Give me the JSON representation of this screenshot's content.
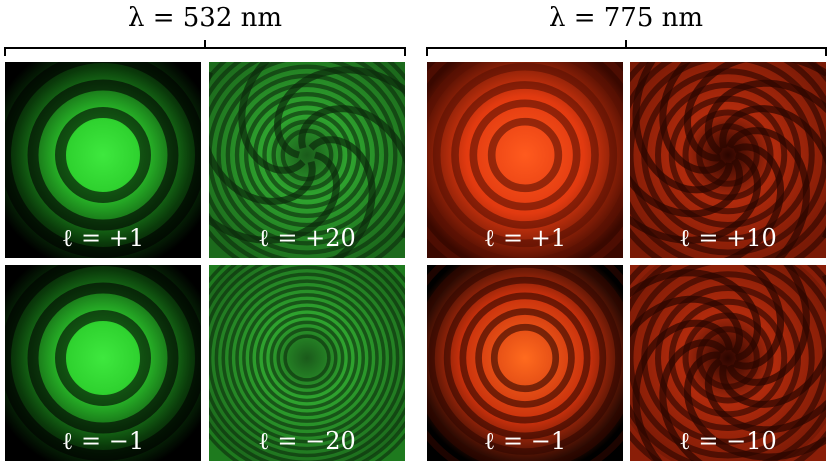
{
  "groups": [
    {
      "title": "λ = 532 nm",
      "panels": [
        {
          "label": "ℓ = +1"
        },
        {
          "label": "ℓ = +20"
        },
        {
          "label": "ℓ = −1"
        },
        {
          "label": "ℓ = −20"
        }
      ]
    },
    {
      "title": "λ = 775 nm",
      "panels": [
        {
          "label": "ℓ = +1"
        },
        {
          "label": "ℓ = +10"
        },
        {
          "label": "ℓ = −1"
        },
        {
          "label": "ℓ = −10"
        }
      ]
    }
  ]
}
